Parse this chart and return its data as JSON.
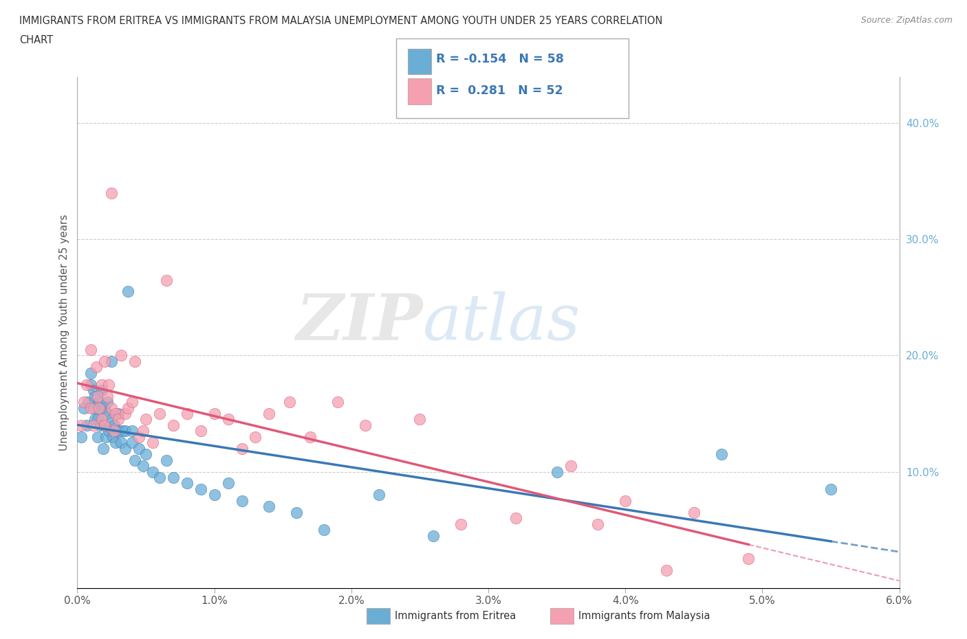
{
  "title_line1": "IMMIGRANTS FROM ERITREA VS IMMIGRANTS FROM MALAYSIA UNEMPLOYMENT AMONG YOUTH UNDER 25 YEARS CORRELATION",
  "title_line2": "CHART",
  "source": "Source: ZipAtlas.com",
  "ylabel": "Unemployment Among Youth under 25 years",
  "xlim": [
    0.0,
    0.06
  ],
  "ylim": [
    0.0,
    0.44
  ],
  "xtick_labels": [
    "0.0%",
    "1.0%",
    "2.0%",
    "3.0%",
    "4.0%",
    "5.0%",
    "6.0%"
  ],
  "xtick_values": [
    0.0,
    0.01,
    0.02,
    0.03,
    0.04,
    0.05,
    0.06
  ],
  "ytick_right_labels": [
    "10.0%",
    "20.0%",
    "30.0%",
    "40.0%"
  ],
  "ytick_right_values": [
    0.1,
    0.2,
    0.3,
    0.4
  ],
  "grid_color": "#cccccc",
  "background_color": "#ffffff",
  "eritrea_color": "#6aaed6",
  "eritrea_line_color": "#3a78b5",
  "malaysia_color": "#f4a0b0",
  "malaysia_line_color": "#e05878",
  "eritrea_R": -0.154,
  "eritrea_N": 58,
  "malaysia_R": 0.281,
  "malaysia_N": 52,
  "legend_label_eritrea": "Immigrants from Eritrea",
  "legend_label_malaysia": "Immigrants from Malaysia",
  "watermark_zip": "ZIP",
  "watermark_atlas": "atlas",
  "eritrea_scatter_x": [
    0.0003,
    0.0005,
    0.0007,
    0.0008,
    0.001,
    0.001,
    0.0012,
    0.0012,
    0.0013,
    0.0013,
    0.0015,
    0.0015,
    0.0016,
    0.0017,
    0.0018,
    0.0018,
    0.0019,
    0.002,
    0.002,
    0.0021,
    0.0022,
    0.0022,
    0.0023,
    0.0025,
    0.0025,
    0.0026,
    0.0027,
    0.0028,
    0.003,
    0.003,
    0.0032,
    0.0033,
    0.0035,
    0.0035,
    0.0037,
    0.004,
    0.004,
    0.0042,
    0.0045,
    0.0048,
    0.005,
    0.0055,
    0.006,
    0.0065,
    0.007,
    0.008,
    0.009,
    0.01,
    0.011,
    0.012,
    0.014,
    0.016,
    0.018,
    0.022,
    0.026,
    0.035,
    0.047,
    0.055
  ],
  "eritrea_scatter_y": [
    0.13,
    0.155,
    0.14,
    0.16,
    0.175,
    0.185,
    0.155,
    0.17,
    0.145,
    0.165,
    0.13,
    0.145,
    0.16,
    0.14,
    0.155,
    0.17,
    0.12,
    0.14,
    0.155,
    0.13,
    0.15,
    0.16,
    0.135,
    0.145,
    0.195,
    0.13,
    0.14,
    0.125,
    0.135,
    0.15,
    0.125,
    0.135,
    0.12,
    0.135,
    0.255,
    0.125,
    0.135,
    0.11,
    0.12,
    0.105,
    0.115,
    0.1,
    0.095,
    0.11,
    0.095,
    0.09,
    0.085,
    0.08,
    0.09,
    0.075,
    0.07,
    0.065,
    0.05,
    0.08,
    0.045,
    0.1,
    0.115,
    0.085
  ],
  "malaysia_scatter_x": [
    0.0003,
    0.0005,
    0.0007,
    0.001,
    0.001,
    0.0012,
    0.0014,
    0.0015,
    0.0016,
    0.0018,
    0.0018,
    0.002,
    0.002,
    0.0022,
    0.0023,
    0.0025,
    0.0025,
    0.0027,
    0.0028,
    0.003,
    0.0032,
    0.0035,
    0.0037,
    0.004,
    0.0042,
    0.0045,
    0.0048,
    0.005,
    0.0055,
    0.006,
    0.0065,
    0.007,
    0.008,
    0.009,
    0.01,
    0.011,
    0.012,
    0.013,
    0.014,
    0.0155,
    0.017,
    0.019,
    0.021,
    0.025,
    0.028,
    0.032,
    0.036,
    0.038,
    0.04,
    0.043,
    0.045,
    0.049
  ],
  "malaysia_scatter_y": [
    0.14,
    0.16,
    0.175,
    0.155,
    0.205,
    0.14,
    0.19,
    0.165,
    0.155,
    0.175,
    0.145,
    0.14,
    0.195,
    0.165,
    0.175,
    0.155,
    0.34,
    0.135,
    0.15,
    0.145,
    0.2,
    0.15,
    0.155,
    0.16,
    0.195,
    0.13,
    0.135,
    0.145,
    0.125,
    0.15,
    0.265,
    0.14,
    0.15,
    0.135,
    0.15,
    0.145,
    0.12,
    0.13,
    0.15,
    0.16,
    0.13,
    0.16,
    0.14,
    0.145,
    0.055,
    0.06,
    0.105,
    0.055,
    0.075,
    0.015,
    0.065,
    0.025
  ]
}
